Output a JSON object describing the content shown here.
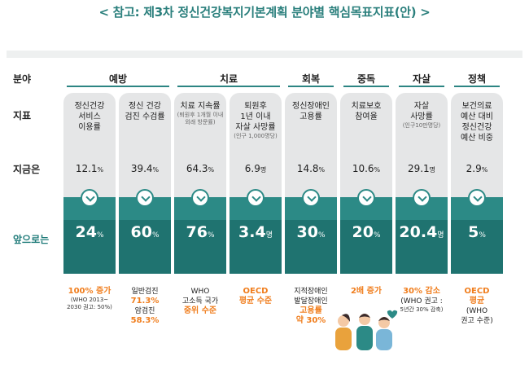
{
  "title": "< 참고: 제3차 정신건강복지기본계획 분야별 핵심목표지표(안) >",
  "row_labels": {
    "field": "분야",
    "indicator": "지표",
    "current": "지금은",
    "future": "앞으로는"
  },
  "categories": [
    {
      "label": "예방"
    },
    {
      "label": "치료"
    },
    {
      "label": "회복"
    },
    {
      "label": "중독"
    },
    {
      "label": "자살"
    },
    {
      "label": "정책"
    }
  ],
  "columns": [
    {
      "indicator_lines": [
        "정신건강",
        "서비스",
        "이용률"
      ],
      "indicator_sub": "",
      "current": "12.1",
      "current_unit": "%",
      "target": "24",
      "target_unit": "%",
      "note_lines": [
        {
          "t": "100% 증가",
          "c": "o"
        },
        {
          "t": "(WHO 2013~",
          "c": "s"
        },
        {
          "t": "2030 권고: 50%)",
          "c": "s"
        }
      ]
    },
    {
      "indicator_lines": [
        "정신 건강",
        "검진 수검률"
      ],
      "indicator_sub": "",
      "current": "39.4",
      "current_unit": "%",
      "target": "60",
      "target_unit": "%",
      "note_lines": [
        {
          "t": "일반검진",
          "c": ""
        },
        {
          "t": "71.3%",
          "c": "o"
        },
        {
          "t": "암검진",
          "c": ""
        },
        {
          "t": "58.3%",
          "c": "o"
        }
      ]
    },
    {
      "indicator_lines": [
        "치료 지속률"
      ],
      "indicator_sub": "(퇴원후 1개월 이내 외래 방문률)",
      "current": "64.3",
      "current_unit": "%",
      "target": "76",
      "target_unit": "%",
      "note_lines": [
        {
          "t": "WHO",
          "c": ""
        },
        {
          "t": "고소득 국가",
          "c": ""
        },
        {
          "t": "중위 수준",
          "c": "o"
        }
      ]
    },
    {
      "indicator_lines": [
        "퇴원후",
        "1년 이내",
        "자살 사망률"
      ],
      "indicator_sub": "(인구 1,000명당)",
      "current": "6.9",
      "current_unit": "명",
      "target": "3.4",
      "target_unit": "명",
      "note_lines": [
        {
          "t": "OECD",
          "c": "o"
        },
        {
          "t": "평균 수준",
          "c": "o"
        }
      ]
    },
    {
      "indicator_lines": [
        "정신장애인",
        "고용률"
      ],
      "indicator_sub": "",
      "current": "14.8",
      "current_unit": "%",
      "target": "30",
      "target_unit": "%",
      "note_lines": [
        {
          "t": "지적장애인",
          "c": ""
        },
        {
          "t": "발달장애인",
          "c": ""
        },
        {
          "t": "고용률",
          "c": "o"
        },
        {
          "t": "약 30%",
          "c": "o"
        }
      ]
    },
    {
      "indicator_lines": [
        "치료보호",
        "참여율"
      ],
      "indicator_sub": "",
      "current": "10.6",
      "current_unit": "%",
      "target": "20",
      "target_unit": "%",
      "note_lines": [
        {
          "t": "2배 증가",
          "c": "o"
        }
      ]
    },
    {
      "indicator_lines": [
        "자살",
        "사망률"
      ],
      "indicator_sub": "(인구10만명당)",
      "current": "29.1",
      "current_unit": "명",
      "target": "20.4",
      "target_unit": "명",
      "note_lines": [
        {
          "t": "30% 감소",
          "c": "o"
        },
        {
          "t": "(WHO 권고 :",
          "c": ""
        },
        {
          "t": "5년간 30% 감축)",
          "c": "s"
        }
      ]
    },
    {
      "indicator_lines": [
        "보건의료",
        "예산 대비",
        "정신건강",
        "예산 비중"
      ],
      "indicator_sub": "",
      "current": "2.9",
      "current_unit": "%",
      "target": "5",
      "target_unit": "%",
      "note_lines": [
        {
          "t": "OECD",
          "c": "o"
        },
        {
          "t": "평균",
          "c": "o"
        },
        {
          "t": "(WHO",
          "c": ""
        },
        {
          "t": "권고 수준)",
          "c": ""
        }
      ]
    }
  ],
  "colors": {
    "teal_dark": "#1f7370",
    "teal": "#2c8a86",
    "orange": "#f07d1c",
    "grey": "#e5e6e7"
  },
  "illustration": "people-icon"
}
